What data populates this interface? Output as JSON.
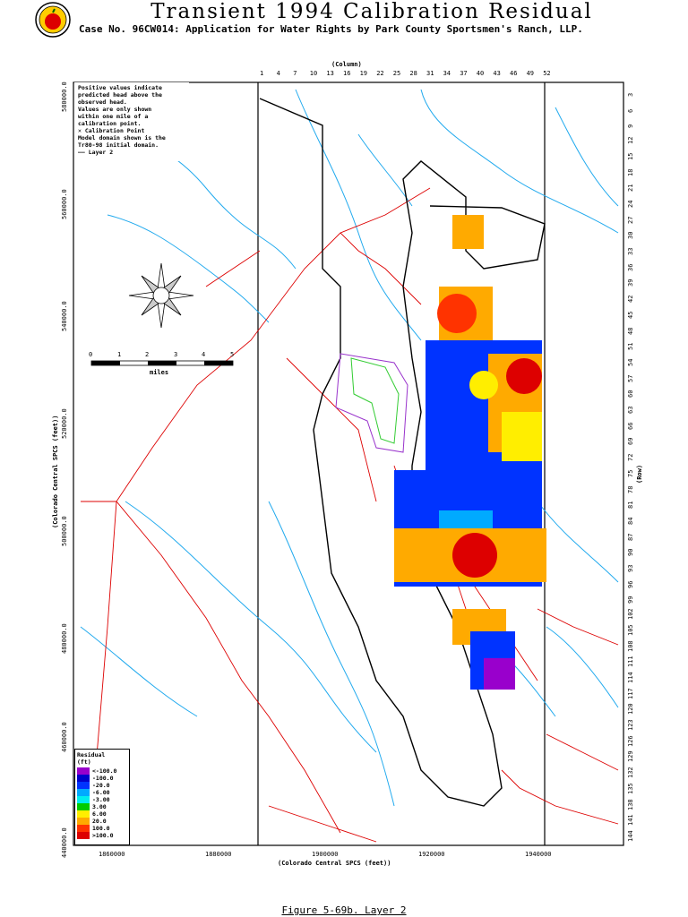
{
  "header": {
    "title": "Transient 1994 Calibration Residual",
    "subtitle": "Case No. 96CW014: Application for Water Rights by Park County Sportsmen's Ranch, LLP."
  },
  "axes": {
    "column_label": "(Column)",
    "row_label": "(Row)",
    "x_label": "(Colorado Central SPCS (feet))",
    "y_label": "(Colorado Central SPCS (feet))",
    "column_ticks": [
      "1",
      "4",
      "7",
      "10",
      "13",
      "16",
      "19",
      "22",
      "25",
      "28",
      "31",
      "34",
      "37",
      "40",
      "43",
      "46",
      "49",
      "52"
    ],
    "row_ticks": [
      "3",
      "6",
      "9",
      "12",
      "15",
      "18",
      "21",
      "24",
      "27",
      "30",
      "33",
      "36",
      "39",
      "42",
      "45",
      "48",
      "51",
      "54",
      "57",
      "60",
      "63",
      "66",
      "69",
      "72",
      "75",
      "78",
      "81",
      "84",
      "87",
      "90",
      "93",
      "96",
      "99",
      "102",
      "105",
      "108",
      "111",
      "114",
      "117",
      "120",
      "123",
      "126",
      "129",
      "132",
      "135",
      "138",
      "141",
      "144"
    ],
    "x_ticks": [
      "1860000",
      "1880000",
      "1900000",
      "1920000",
      "1940000"
    ],
    "y_ticks": [
      "580000.0",
      "560000.0",
      "540000.0",
      "520000.0",
      "500000.0",
      "480000.0",
      "460000.0",
      "440000.0"
    ]
  },
  "notes": {
    "line1": "Positive values indicate",
    "line2": "predicted head above the",
    "line3": "observed head.",
    "line4": "Values are only shown",
    "line5": "within one mile of a",
    "line6": "calibration point.",
    "line7": "✕ Calibration Point",
    "line8": "Model domain shown is the",
    "line9": "Tr80-98 initial domain.",
    "line10": "—— Layer 2"
  },
  "scale": {
    "labels": [
      "0",
      "1",
      "2",
      "3",
      "4",
      "5"
    ],
    "unit": "miles"
  },
  "legend": {
    "title": "Residual",
    "unit": "(ft)",
    "items": [
      {
        "label": "<-100.0",
        "color": "#9900cc"
      },
      {
        "label": "-100.0",
        "color": "#0000cc"
      },
      {
        "label": "-20.0",
        "color": "#0033ff"
      },
      {
        "label": "-6.00",
        "color": "#00aaff"
      },
      {
        "label": "-3.00",
        "color": "#00eeee"
      },
      {
        "label": "3.00",
        "color": "#00cc00"
      },
      {
        "label": "6.00",
        "color": "#ffee00"
      },
      {
        "label": "20.0",
        "color": "#ffaa00"
      },
      {
        "label": "100.0",
        "color": "#ff3300"
      },
      {
        "label": ">100.0",
        "color": "#dd0000"
      }
    ]
  },
  "caption": "Figure 5-69b.  Layer 2"
}
